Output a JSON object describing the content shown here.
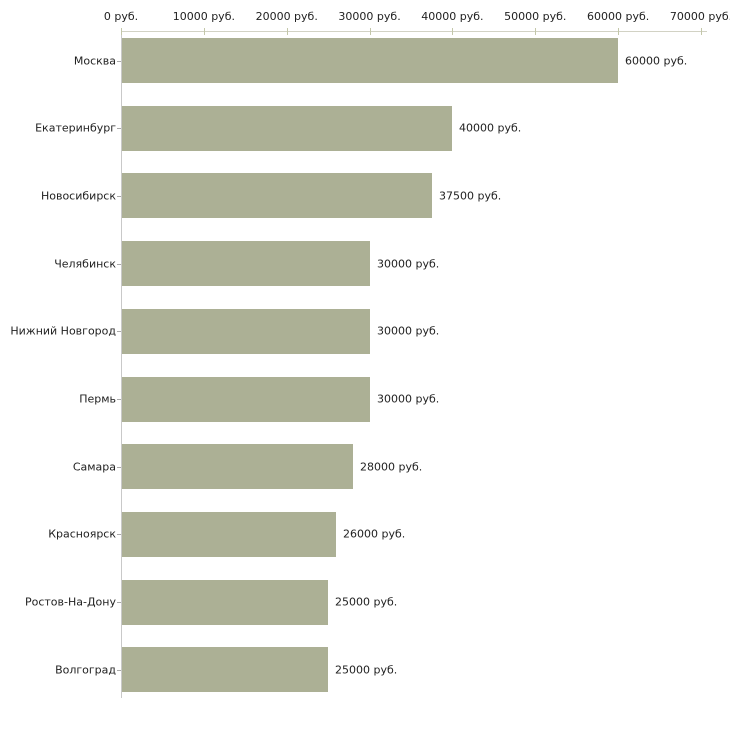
{
  "chart_data": {
    "type": "bar",
    "orientation": "horizontal",
    "title": "",
    "xlabel": "",
    "ylabel": "",
    "categories": [
      "Москва",
      "Екатеринбург",
      "Новосибирск",
      "Челябинск",
      "Нижний Новгород",
      "Пермь",
      "Самара",
      "Красноярск",
      "Ростов-На-Дону",
      "Волгоград"
    ],
    "values": [
      60000,
      40000,
      37500,
      30000,
      30000,
      30000,
      28000,
      26000,
      25000,
      25000
    ],
    "value_labels": [
      "60000 руб.",
      "40000 руб.",
      "37500 руб.",
      "30000 руб.",
      "30000 руб.",
      "30000 руб.",
      "28000 руб.",
      "26000 руб.",
      "25000 руб.",
      "25000 руб."
    ],
    "x_tick_values": [
      0,
      10000,
      20000,
      30000,
      40000,
      50000,
      60000,
      70000
    ],
    "x_tick_labels": [
      "0 руб.",
      "10000 руб.",
      "20000 руб.",
      "30000 руб.",
      "40000 руб.",
      "50000 руб.",
      "60000 руб.",
      "70000 руб."
    ],
    "xlim": [
      0,
      70000
    ],
    "unit": "руб.",
    "grid": false,
    "legend": null,
    "axis_position": "top",
    "colors": {
      "bar": "#acb095",
      "x_axis_line": "#d2d2c4",
      "y_axis_line": "#c9c9c9",
      "x_tick": "#c3c7a9",
      "y_tick": "#a9a9a9",
      "text": "#222222",
      "background": "#ffffff"
    }
  }
}
